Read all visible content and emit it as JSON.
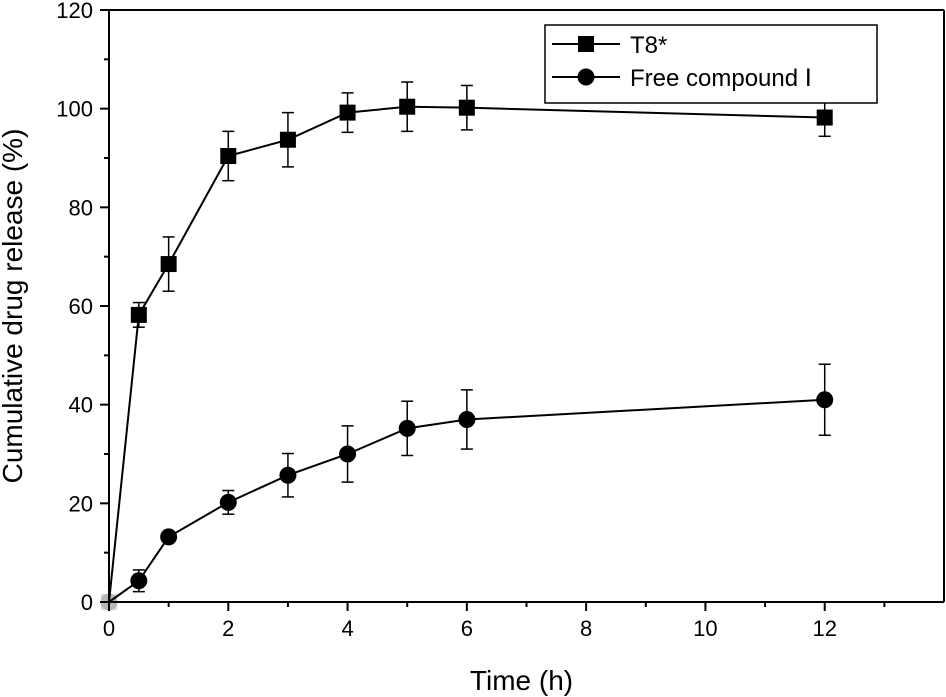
{
  "chart_data": {
    "type": "line",
    "xlabel": "Time (h)",
    "ylabel": "Cumulative drug release (%)",
    "xlim": [
      0,
      14
    ],
    "ylim": [
      0,
      120
    ],
    "xticks": [
      0,
      2,
      4,
      6,
      8,
      10,
      12
    ],
    "yticks": [
      0,
      20,
      40,
      60,
      80,
      100,
      120
    ],
    "x_tick_labels": [
      "0",
      "2",
      "4",
      "6",
      "8",
      "10",
      "12"
    ],
    "y_tick_labels": [
      "0",
      "20",
      "40",
      "60",
      "80",
      "100",
      "120"
    ],
    "grid": false,
    "legend_position": "top-right",
    "series": [
      {
        "name": "T8*",
        "marker": "square",
        "x": [
          0,
          0.5,
          1,
          2,
          3,
          4,
          5,
          6,
          12
        ],
        "values": [
          0,
          58.2,
          68.5,
          90.4,
          93.7,
          99.2,
          100.4,
          100.2,
          98.2
        ],
        "errors": [
          0,
          2.5,
          5.5,
          5.0,
          5.5,
          4.0,
          5.0,
          4.5,
          3.8
        ]
      },
      {
        "name": "Free compound Ⅰ",
        "marker": "circle",
        "x": [
          0,
          0.5,
          1,
          2,
          3,
          4,
          5,
          6,
          12
        ],
        "values": [
          0,
          4.3,
          13.2,
          20.2,
          25.7,
          30.0,
          35.2,
          37.0,
          41.0
        ],
        "errors": [
          0,
          2.2,
          0,
          2.4,
          4.4,
          5.7,
          5.5,
          6.0,
          7.2
        ]
      }
    ]
  }
}
